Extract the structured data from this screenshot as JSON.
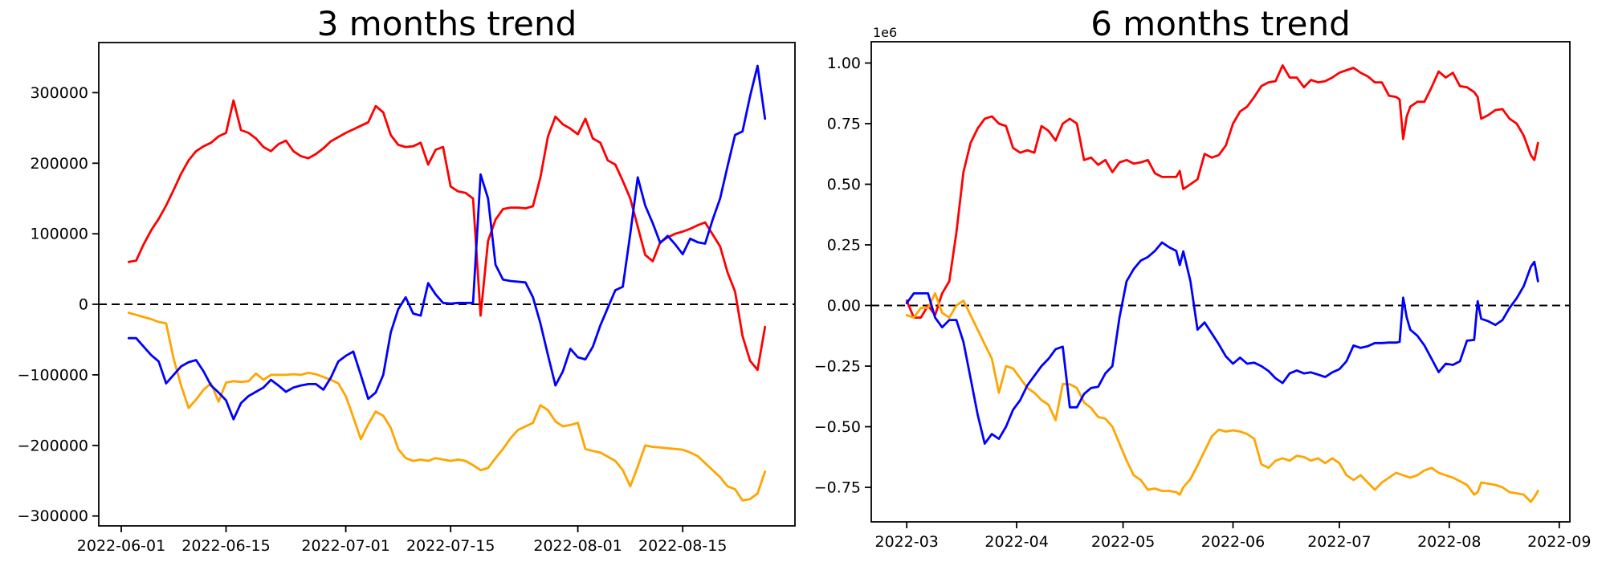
{
  "page": {
    "background_color": "#ffffff"
  },
  "chart_data": [
    {
      "type": "line",
      "title": "3 months trend",
      "xlabel": "",
      "ylabel": "",
      "grid": false,
      "legend": null,
      "zero_line": {
        "value": 0,
        "style": "dashed",
        "color": "#000000"
      },
      "xlim": [
        "2022-05-29",
        "2022-08-30"
      ],
      "ylim": [
        -314000,
        371000
      ],
      "yticks": {
        "values": [
          300000,
          200000,
          100000,
          0,
          -100000,
          -200000,
          -300000
        ],
        "labels": [
          "300000",
          "200000",
          "100000",
          "0",
          "−100000",
          "−200000",
          "−300000"
        ]
      },
      "xticks": {
        "dates": [
          "2022-06-01",
          "2022-06-15",
          "2022-07-01",
          "2022-07-15",
          "2022-08-01",
          "2022-08-15"
        ],
        "labels": [
          "2022-06-01",
          "2022-06-15",
          "2022-07-01",
          "2022-07-15",
          "2022-08-01",
          "2022-08-15"
        ]
      },
      "x_dates": [
        "2022-06-02",
        "2022-06-03",
        "2022-06-04",
        "2022-06-05",
        "2022-06-06",
        "2022-06-07",
        "2022-06-08",
        "2022-06-09",
        "2022-06-10",
        "2022-06-11",
        "2022-06-12",
        "2022-06-13",
        "2022-06-14",
        "2022-06-15",
        "2022-06-16",
        "2022-06-17",
        "2022-06-18",
        "2022-06-19",
        "2022-06-20",
        "2022-06-21",
        "2022-06-22",
        "2022-06-23",
        "2022-06-24",
        "2022-06-25",
        "2022-06-26",
        "2022-06-27",
        "2022-06-28",
        "2022-06-29",
        "2022-06-30",
        "2022-07-01",
        "2022-07-02",
        "2022-07-03",
        "2022-07-04",
        "2022-07-05",
        "2022-07-06",
        "2022-07-07",
        "2022-07-08",
        "2022-07-09",
        "2022-07-10",
        "2022-07-11",
        "2022-07-12",
        "2022-07-13",
        "2022-07-14",
        "2022-07-15",
        "2022-07-16",
        "2022-07-17",
        "2022-07-18",
        "2022-07-19",
        "2022-07-20",
        "2022-07-21",
        "2022-07-22",
        "2022-07-23",
        "2022-07-24",
        "2022-07-25",
        "2022-07-26",
        "2022-07-27",
        "2022-07-28",
        "2022-07-29",
        "2022-07-30",
        "2022-07-31",
        "2022-08-01",
        "2022-08-02",
        "2022-08-03",
        "2022-08-04",
        "2022-08-05",
        "2022-08-06",
        "2022-08-07",
        "2022-08-08",
        "2022-08-09",
        "2022-08-10",
        "2022-08-11",
        "2022-08-12",
        "2022-08-13",
        "2022-08-14",
        "2022-08-15",
        "2022-08-16",
        "2022-08-17",
        "2022-08-18",
        "2022-08-19",
        "2022-08-20",
        "2022-08-21",
        "2022-08-22",
        "2022-08-23",
        "2022-08-24",
        "2022-08-25",
        "2022-08-26"
      ],
      "series": [
        {
          "name": "red",
          "color": "#ff0000",
          "values": [
            60000,
            62000,
            85000,
            105000,
            121000,
            140000,
            162000,
            185000,
            204000,
            217000,
            224000,
            229000,
            238000,
            243000,
            289000,
            247000,
            243000,
            235000,
            223000,
            217000,
            227000,
            232000,
            217000,
            210000,
            207000,
            213000,
            221000,
            231000,
            237000,
            243000,
            248000,
            253000,
            258000,
            281000,
            272000,
            240000,
            226000,
            223000,
            224000,
            229000,
            198000,
            219000,
            223000,
            167000,
            160000,
            158000,
            150000,
            -16000,
            90000,
            120000,
            135000,
            137000,
            137000,
            136000,
            139000,
            180000,
            238000,
            266000,
            255000,
            249000,
            241000,
            263000,
            235000,
            229000,
            204000,
            198000,
            175000,
            150000,
            110000,
            70000,
            61000,
            88000,
            95000,
            100000,
            103000,
            107000,
            112000,
            116000,
            99000,
            82000,
            45000,
            18000,
            -45000,
            -80000,
            -93000,
            -32000
          ]
        },
        {
          "name": "orange",
          "color": "#ffa500",
          "values": [
            -12000,
            -15000,
            -18000,
            -21000,
            -25000,
            -27000,
            -77000,
            -115000,
            -147000,
            -135000,
            -121000,
            -112000,
            -138000,
            -111000,
            -109000,
            -110000,
            -109000,
            -98000,
            -107000,
            -100000,
            -100000,
            -100000,
            -99000,
            -100000,
            -97000,
            -99000,
            -103000,
            -107000,
            -112000,
            -130000,
            -160000,
            -191000,
            -170000,
            -152000,
            -158000,
            -175000,
            -205000,
            -218000,
            -222000,
            -220000,
            -222000,
            -218000,
            -220000,
            -222000,
            -220000,
            -222000,
            -228000,
            -235000,
            -232000,
            -218000,
            -205000,
            -190000,
            -178000,
            -173000,
            -168000,
            -143000,
            -150000,
            -166000,
            -173000,
            -171000,
            -168000,
            -205000,
            -208000,
            -210000,
            -216000,
            -222000,
            -235000,
            -258000,
            -230000,
            -200000,
            -202000,
            -203000,
            -204000,
            -205000,
            -206000,
            -210000,
            -215000,
            -225000,
            -235000,
            -245000,
            -258000,
            -262000,
            -278000,
            -276000,
            -268000,
            -237000
          ]
        },
        {
          "name": "blue",
          "color": "#0000ff",
          "values": [
            -48000,
            -48000,
            -60000,
            -72000,
            -81000,
            -112000,
            -100000,
            -88000,
            -82000,
            -79000,
            -95000,
            -115000,
            -125000,
            -136000,
            -163000,
            -140000,
            -130000,
            -124000,
            -118000,
            -107000,
            -115000,
            -124000,
            -118000,
            -115000,
            -113000,
            -113000,
            -121000,
            -104000,
            -81000,
            -73000,
            -67000,
            -100000,
            -134000,
            -125000,
            -100000,
            -40000,
            -7000,
            10000,
            -13000,
            -16000,
            30000,
            14000,
            2000,
            1000,
            2000,
            2000,
            2000,
            184000,
            150000,
            56000,
            35000,
            33000,
            32000,
            31000,
            10000,
            -27000,
            -72000,
            -115000,
            -95000,
            -63000,
            -75000,
            -78000,
            -60000,
            -30000,
            -5000,
            20000,
            25000,
            100000,
            180000,
            140000,
            115000,
            87000,
            97000,
            85000,
            71000,
            93000,
            88000,
            86000,
            120000,
            150000,
            196000,
            240000,
            245000,
            295000,
            338000,
            263000
          ]
        }
      ]
    },
    {
      "type": "line",
      "title": "6 months trend",
      "xlabel": "",
      "ylabel": "",
      "grid": false,
      "legend": null,
      "y_offset_text": "1e6",
      "y_unit_multiplier": 1000000,
      "zero_line": {
        "value": 0,
        "style": "dashed",
        "color": "#000000"
      },
      "xlim": [
        "2022-02-19",
        "2022-09-04"
      ],
      "ylim": [
        -0.8924,
        1.0877
      ],
      "yticks": {
        "values": [
          1.0,
          0.75,
          0.5,
          0.25,
          0.0,
          -0.25,
          -0.5,
          -0.75
        ],
        "labels": [
          "1.00",
          "0.75",
          "0.50",
          "0.25",
          "0.00",
          "−0.25",
          "−0.50",
          "−0.75"
        ]
      },
      "xticks": {
        "dates": [
          "2022-03-01",
          "2022-04-01",
          "2022-05-01",
          "2022-06-01",
          "2022-07-01",
          "2022-08-01",
          "2022-09-01"
        ],
        "labels": [
          "2022-03",
          "2022-04",
          "2022-05",
          "2022-06",
          "2022-07",
          "2022-08",
          "2022-09"
        ]
      },
      "x_dates": [
        "2022-03-01",
        "2022-03-03",
        "2022-03-05",
        "2022-03-07",
        "2022-03-09",
        "2022-03-11",
        "2022-03-13",
        "2022-03-15",
        "2022-03-17",
        "2022-03-19",
        "2022-03-21",
        "2022-03-23",
        "2022-03-25",
        "2022-03-27",
        "2022-03-29",
        "2022-03-31",
        "2022-04-02",
        "2022-04-04",
        "2022-04-06",
        "2022-04-08",
        "2022-04-10",
        "2022-04-12",
        "2022-04-14",
        "2022-04-16",
        "2022-04-18",
        "2022-04-20",
        "2022-04-22",
        "2022-04-24",
        "2022-04-26",
        "2022-04-28",
        "2022-04-30",
        "2022-05-02",
        "2022-05-04",
        "2022-05-06",
        "2022-05-08",
        "2022-05-10",
        "2022-05-12",
        "2022-05-14",
        "2022-05-16",
        "2022-05-17",
        "2022-05-18",
        "2022-05-20",
        "2022-05-22",
        "2022-05-24",
        "2022-05-26",
        "2022-05-28",
        "2022-05-30",
        "2022-06-01",
        "2022-06-03",
        "2022-06-05",
        "2022-06-07",
        "2022-06-09",
        "2022-06-11",
        "2022-06-13",
        "2022-06-15",
        "2022-06-17",
        "2022-06-19",
        "2022-06-21",
        "2022-06-23",
        "2022-06-25",
        "2022-06-27",
        "2022-06-29",
        "2022-07-01",
        "2022-07-03",
        "2022-07-05",
        "2022-07-07",
        "2022-07-09",
        "2022-07-11",
        "2022-07-13",
        "2022-07-15",
        "2022-07-17",
        "2022-07-18",
        "2022-07-19",
        "2022-07-20",
        "2022-07-21",
        "2022-07-23",
        "2022-07-25",
        "2022-07-27",
        "2022-07-29",
        "2022-07-31",
        "2022-08-02",
        "2022-08-04",
        "2022-08-06",
        "2022-08-08",
        "2022-08-09",
        "2022-08-10",
        "2022-08-12",
        "2022-08-14",
        "2022-08-16",
        "2022-08-18",
        "2022-08-20",
        "2022-08-22",
        "2022-08-24",
        "2022-08-25",
        "2022-08-26"
      ],
      "series": [
        {
          "name": "red",
          "color": "#ff0000",
          "values": [
            0.02,
            -0.05,
            -0.05,
            0.0,
            -0.04,
            0.05,
            0.1,
            0.3,
            0.55,
            0.67,
            0.73,
            0.77,
            0.78,
            0.75,
            0.74,
            0.65,
            0.63,
            0.64,
            0.63,
            0.74,
            0.72,
            0.68,
            0.75,
            0.77,
            0.75,
            0.6,
            0.61,
            0.58,
            0.6,
            0.55,
            0.59,
            0.6,
            0.585,
            0.59,
            0.6,
            0.545,
            0.53,
            0.53,
            0.53,
            0.555,
            0.48,
            0.5,
            0.52,
            0.625,
            0.61,
            0.62,
            0.66,
            0.75,
            0.8,
            0.82,
            0.86,
            0.905,
            0.92,
            0.925,
            0.99,
            0.94,
            0.94,
            0.9,
            0.93,
            0.92,
            0.925,
            0.94,
            0.96,
            0.97,
            0.98,
            0.96,
            0.945,
            0.92,
            0.92,
            0.865,
            0.86,
            0.85,
            0.687,
            0.78,
            0.82,
            0.84,
            0.84,
            0.9,
            0.965,
            0.94,
            0.96,
            0.905,
            0.9,
            0.88,
            0.86,
            0.77,
            0.785,
            0.806,
            0.81,
            0.77,
            0.75,
            0.7,
            0.62,
            0.6,
            0.67
          ]
        },
        {
          "name": "orange",
          "color": "#ffa500",
          "values": [
            -0.04,
            -0.05,
            -0.01,
            -0.01,
            0.05,
            -0.03,
            -0.05,
            0.0,
            0.02,
            -0.04,
            -0.1,
            -0.16,
            -0.22,
            -0.36,
            -0.25,
            -0.26,
            -0.3,
            -0.34,
            -0.36,
            -0.39,
            -0.41,
            -0.473,
            -0.324,
            -0.325,
            -0.34,
            -0.4,
            -0.423,
            -0.46,
            -0.467,
            -0.5,
            -0.57,
            -0.64,
            -0.7,
            -0.72,
            -0.76,
            -0.755,
            -0.765,
            -0.765,
            -0.77,
            -0.78,
            -0.75,
            -0.716,
            -0.66,
            -0.6,
            -0.54,
            -0.512,
            -0.52,
            -0.515,
            -0.52,
            -0.53,
            -0.55,
            -0.655,
            -0.67,
            -0.64,
            -0.63,
            -0.64,
            -0.62,
            -0.625,
            -0.64,
            -0.63,
            -0.65,
            -0.63,
            -0.65,
            -0.7,
            -0.72,
            -0.7,
            -0.73,
            -0.76,
            -0.73,
            -0.71,
            -0.69,
            -0.695,
            -0.7,
            -0.705,
            -0.71,
            -0.7,
            -0.68,
            -0.67,
            -0.69,
            -0.7,
            -0.71,
            -0.725,
            -0.74,
            -0.78,
            -0.77,
            -0.73,
            -0.735,
            -0.74,
            -0.75,
            -0.77,
            -0.775,
            -0.78,
            -0.81,
            -0.79,
            -0.765
          ]
        },
        {
          "name": "blue",
          "color": "#0000ff",
          "values": [
            0.01,
            0.05,
            0.05,
            0.05,
            -0.05,
            -0.09,
            -0.06,
            -0.06,
            -0.15,
            -0.3,
            -0.45,
            -0.57,
            -0.53,
            -0.55,
            -0.5,
            -0.43,
            -0.39,
            -0.33,
            -0.29,
            -0.25,
            -0.22,
            -0.18,
            -0.17,
            -0.42,
            -0.42,
            -0.365,
            -0.34,
            -0.335,
            -0.28,
            -0.25,
            -0.05,
            0.1,
            0.15,
            0.185,
            0.2,
            0.225,
            0.26,
            0.24,
            0.225,
            0.167,
            0.223,
            0.1,
            -0.1,
            -0.07,
            -0.115,
            -0.16,
            -0.21,
            -0.24,
            -0.215,
            -0.24,
            -0.236,
            -0.25,
            -0.27,
            -0.3,
            -0.32,
            -0.28,
            -0.268,
            -0.28,
            -0.276,
            -0.285,
            -0.295,
            -0.276,
            -0.263,
            -0.23,
            -0.165,
            -0.175,
            -0.168,
            -0.155,
            -0.155,
            -0.153,
            -0.153,
            -0.15,
            0.032,
            -0.05,
            -0.1,
            -0.125,
            -0.165,
            -0.22,
            -0.275,
            -0.24,
            -0.245,
            -0.23,
            -0.145,
            -0.142,
            0.018,
            -0.055,
            -0.065,
            -0.08,
            -0.06,
            -0.01,
            0.03,
            0.08,
            0.16,
            0.18,
            0.1
          ]
        }
      ]
    }
  ]
}
